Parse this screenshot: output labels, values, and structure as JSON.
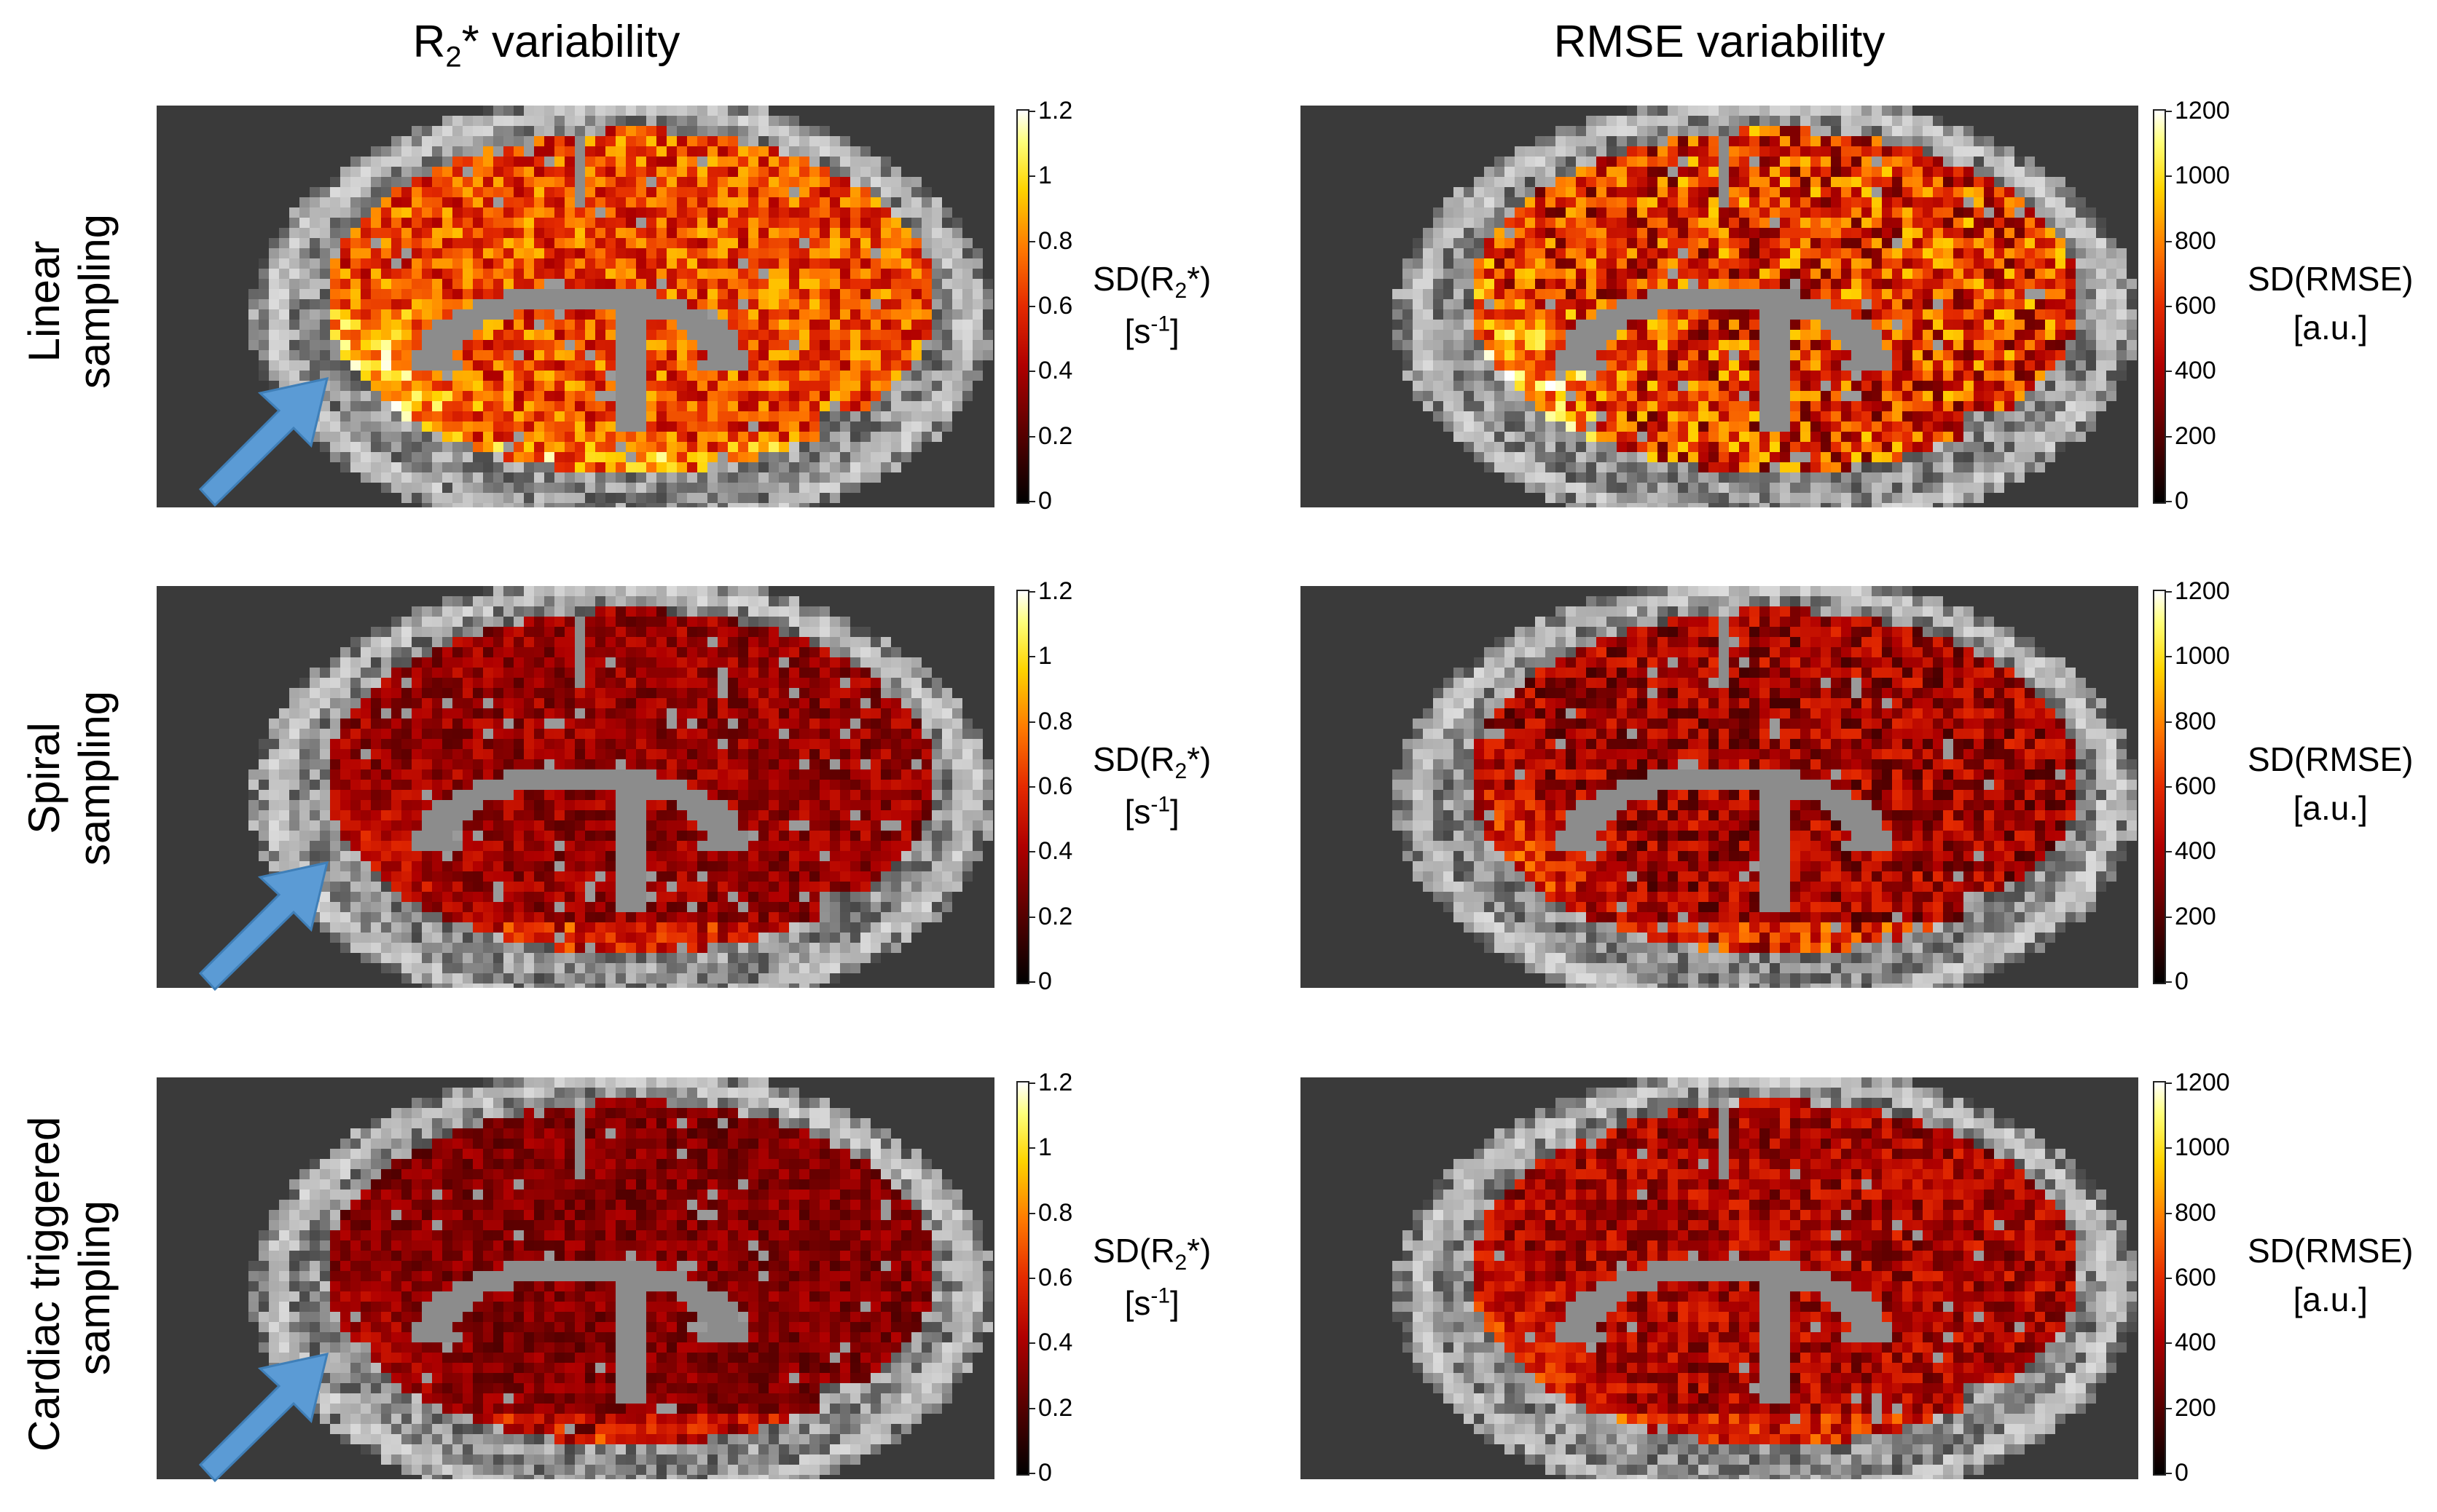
{
  "columns": {
    "left": {
      "title_main": "R",
      "title_sub": "2",
      "title_rest": "* variability"
    },
    "right": {
      "title": "RMSE variability"
    }
  },
  "rows": [
    {
      "line1": "Linear",
      "line2": "sampling"
    },
    {
      "line1": "Spiral",
      "line2": "sampling"
    },
    {
      "line1": "Cardiac triggered",
      "line2": "sampling"
    }
  ],
  "colorbars": {
    "r2": {
      "ticks": [
        "1.2",
        "1",
        "0.8",
        "0.6",
        "0.4",
        "0.2",
        "0"
      ],
      "label_main": "SD(R",
      "label_sub": "2",
      "label_rest": "*)",
      "unit_main": "[s",
      "unit_sup": "-1",
      "unit_rest": "]"
    },
    "rmse": {
      "ticks": [
        "1200",
        "1000",
        "800",
        "600",
        "400",
        "200",
        "0"
      ],
      "label": "SD(RMSE)",
      "unit": "[a.u.]"
    }
  },
  "colors": {
    "arrow": "#5b9bd5",
    "background": "#3a3a3a"
  }
}
